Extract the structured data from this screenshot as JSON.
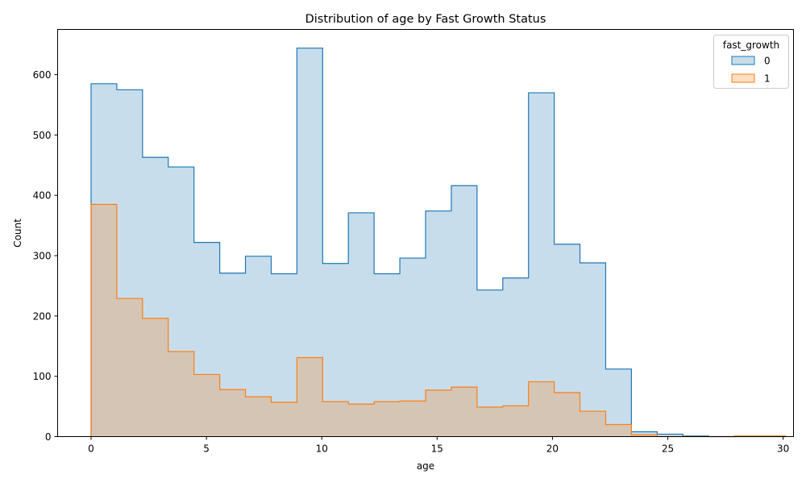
{
  "chart_data": {
    "type": "histogram",
    "title": "Distribution of age by Fast Growth Status",
    "xlabel": "age",
    "ylabel": "Count",
    "xlim": [
      -1.45,
      30.45
    ],
    "ylim": [
      0,
      675
    ],
    "x_ticks": [
      0,
      5,
      10,
      15,
      20,
      25,
      30
    ],
    "y_ticks": [
      0,
      100,
      200,
      300,
      400,
      500,
      600
    ],
    "x_tick_labels": [
      "0",
      "5",
      "10",
      "15",
      "20",
      "25",
      "30"
    ],
    "y_tick_labels": [
      "0",
      "100",
      "200",
      "300",
      "400",
      "500",
      "600"
    ],
    "element": "step",
    "bin_start": 0,
    "bin_width": 1.1154,
    "legend": {
      "title": "fast_growth",
      "position": "top-right"
    },
    "series": [
      {
        "name": "0",
        "color": "#1f77b4",
        "fill": "rgba(31,119,180,0.25)",
        "values": [
          585,
          575,
          463,
          447,
          322,
          271,
          299,
          270,
          644,
          287,
          371,
          270,
          296,
          374,
          416,
          243,
          263,
          570,
          319,
          288,
          112,
          8,
          4,
          1,
          0,
          0,
          0
        ]
      },
      {
        "name": "1",
        "color": "#ff7f0e",
        "fill": "rgba(255,127,14,0.25)",
        "values": [
          385,
          229,
          196,
          141,
          103,
          78,
          66,
          57,
          131,
          58,
          54,
          58,
          59,
          77,
          82,
          49,
          51,
          91,
          73,
          42,
          20,
          3,
          0,
          0,
          0,
          1,
          1
        ]
      }
    ]
  }
}
